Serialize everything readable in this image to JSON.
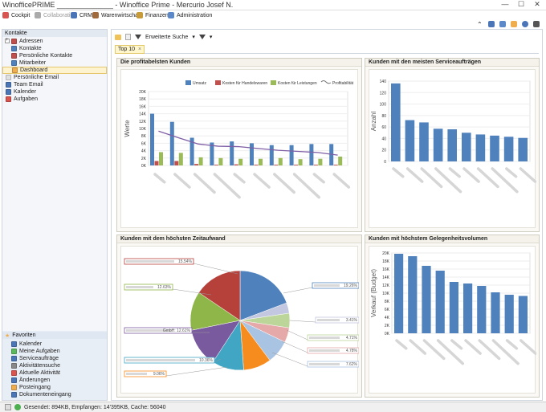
{
  "window": {
    "title": "WinofficePRIME ______________ - Winoffice Prime - Mercurio Josef N.",
    "controls": [
      "—",
      "☐",
      "✕"
    ]
  },
  "menu": [
    {
      "label": "Cockpit",
      "color": "#d9534f",
      "dim": false
    },
    {
      "label": "Collaboration",
      "color": "#aaaaaa",
      "dim": true
    },
    {
      "label": "CRM",
      "color": "#4a76b8",
      "dim": false
    },
    {
      "label": "Warenwirtschaft",
      "color": "#a06a3a",
      "dim": false
    },
    {
      "label": "Finanzen",
      "color": "#c79a3a",
      "dim": false
    },
    {
      "label": "Administration",
      "color": "#5a88c9",
      "dim": false
    }
  ],
  "toolicons": [
    "chevron-up-icon",
    "save-icon",
    "link-icon",
    "bell-icon",
    "help-icon",
    "settings-icon"
  ],
  "sidebar": {
    "groups": [
      {
        "label": "Kontakte",
        "items": [
          {
            "label": "Adressen",
            "expander": "+",
            "color": "#c0504d"
          },
          {
            "label": "Kontakte",
            "color": "#4f81bd"
          },
          {
            "label": "Persönliche Kontakte",
            "color": "#c0504d"
          },
          {
            "label": "Mitarbeiter",
            "color": "#4f81bd"
          },
          {
            "label": "Dashboard",
            "color": "#f0ad4e",
            "selected": true
          }
        ]
      }
    ],
    "top_items": [
      {
        "label": "Persönliche Email",
        "color": "#e0e0e0"
      },
      {
        "label": "Team Email",
        "color": "#4a76b8"
      },
      {
        "label": "Kalender",
        "color": "#4a76b8"
      },
      {
        "label": "Aufgaben",
        "color": "#d9534f"
      }
    ],
    "favorites": {
      "label": "Favoriten",
      "items": [
        {
          "label": "Kalender",
          "color": "#4a76b8"
        },
        {
          "label": "Meine Aufgaben",
          "color": "#5cb85c"
        },
        {
          "label": "Serviceaufträge",
          "color": "#4a76b8"
        },
        {
          "label": "Aktivitätensuche",
          "color": "#888888"
        },
        {
          "label": "Aktuelle Aktivität",
          "color": "#d9534f"
        },
        {
          "label": "Änderungen",
          "color": "#4a76b8"
        },
        {
          "label": "Posteingang",
          "color": "#f0ad4e"
        },
        {
          "label": "Dokumenteneingang",
          "color": "#4a76b8"
        }
      ]
    }
  },
  "toolbar": {
    "search_label": "Erweiterte Suche",
    "tab_label": "Top 10",
    "tab_close": "×"
  },
  "panels": {
    "profitable": {
      "title": "Die profitabelsten Kunden",
      "legend": [
        "Umsatz",
        "Kosten für Handelswaren",
        "Kosten für Leistungen",
        "Profitabilität"
      ],
      "ylabel": "Werte",
      "yticks": [
        "0K",
        "2K",
        "4K",
        "6K",
        "8K",
        "10K",
        "12K",
        "14K",
        "16K",
        "18K",
        "20K"
      ],
      "colors": [
        "#4f81bd",
        "#c0504d",
        "#9bbb59",
        "#7e5ea5"
      ]
    },
    "service": {
      "title": "Kunden mit den meisten Serviceaufträgen",
      "ylabel": "Anzahl",
      "yticks": [
        "0",
        "20",
        "40",
        "60",
        "80",
        "100",
        "120",
        "140"
      ]
    },
    "time": {
      "title": "Kunden mit dem höchsten Zeitaufwand",
      "labels": [
        "15.54%",
        "12.63%",
        "GmbH: 12.61%",
        "10.36%",
        "9.06%",
        "19.26%",
        "3.41%",
        "4.71%",
        "4.78%",
        "7.62%"
      ]
    },
    "opportunity": {
      "title": "Kunden mit höchstem Gelegenheitsvolumen",
      "ylabel": "Verkauf (Budget)",
      "yticks": [
        "0K",
        "2K",
        "4K",
        "6K",
        "8K",
        "10K",
        "12K",
        "14K",
        "16K",
        "18K",
        "20K"
      ]
    }
  },
  "chart_data": [
    {
      "type": "bar",
      "title": "Die profitabelsten Kunden",
      "ylabel": "Werte",
      "ylim": [
        0,
        20000
      ],
      "series": [
        {
          "name": "Umsatz",
          "values": [
            14000,
            11800,
            7500,
            6200,
            6500,
            6000,
            5500,
            5500,
            5800,
            5800
          ]
        },
        {
          "name": "Kosten für Handelswaren",
          "values": [
            1200,
            1200,
            400,
            200,
            300,
            200,
            200,
            200,
            200,
            200
          ]
        },
        {
          "name": "Kosten für Leistungen",
          "values": [
            3600,
            3400,
            2200,
            2000,
            1800,
            1800,
            2000,
            1700,
            1800,
            2400
          ]
        },
        {
          "name": "Profitabilität",
          "values": [
            9300,
            7500,
            5800,
            5200,
            5100,
            4600,
            4100,
            3800,
            3500,
            2800
          ]
        }
      ]
    },
    {
      "type": "bar",
      "title": "Kunden mit den meisten Serviceaufträgen",
      "ylabel": "Anzahl",
      "ylim": [
        0,
        140
      ],
      "values": [
        136,
        72,
        68,
        57,
        56,
        50,
        47,
        45,
        43,
        41
      ]
    },
    {
      "type": "pie",
      "title": "Kunden mit dem höchsten Zeitaufwand",
      "values": [
        19.26,
        3.41,
        4.71,
        4.78,
        7.62,
        9.06,
        10.36,
        12.61,
        12.63,
        15.54
      ],
      "colors": [
        "#4f81bd",
        "#c3c7e0",
        "#bcd69a",
        "#e6a9a9",
        "#a9c3e2",
        "#f78c1e",
        "#41a6c4",
        "#7a5a9e",
        "#8fb648",
        "#b6403a"
      ]
    },
    {
      "type": "bar",
      "title": "Kunden mit höchstem Gelegenheitsvolumen",
      "ylabel": "Verkauf (Budget)",
      "ylim": [
        0,
        20000
      ],
      "values": [
        19800,
        19200,
        16800,
        15600,
        12800,
        12400,
        11800,
        10200,
        9600,
        9300
      ]
    }
  ],
  "status": {
    "text": "Gesendet: 894KB, Empfangen: 14'395KB, Cache: 56040"
  }
}
